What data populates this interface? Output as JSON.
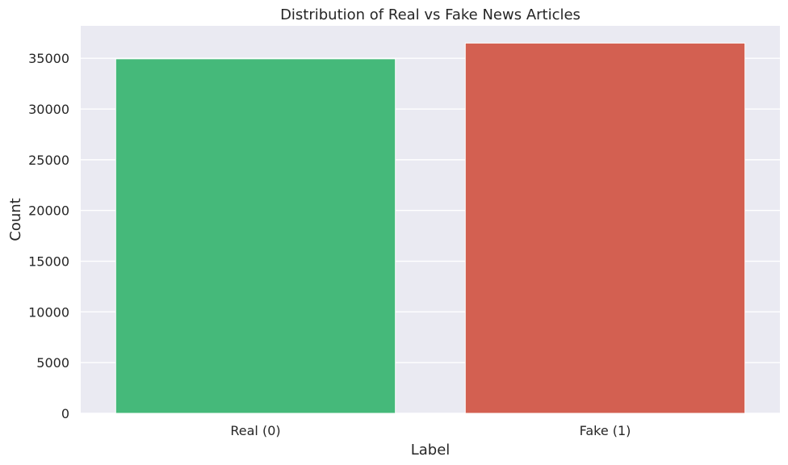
{
  "chart_data": {
    "type": "bar",
    "title": "Distribution of Real vs Fake News Articles",
    "xlabel": "Label",
    "ylabel": "Count",
    "categories": [
      "Real (0)",
      "Fake (1)"
    ],
    "values": [
      34950,
      36500
    ],
    "colors": [
      "#45b97a",
      "#d36051"
    ],
    "ylim": [
      0,
      38200
    ],
    "yticks": [
      0,
      5000,
      10000,
      15000,
      20000,
      25000,
      30000,
      35000
    ],
    "grid": true,
    "background": "#eaeaf2",
    "grid_color": "#ffffff"
  }
}
